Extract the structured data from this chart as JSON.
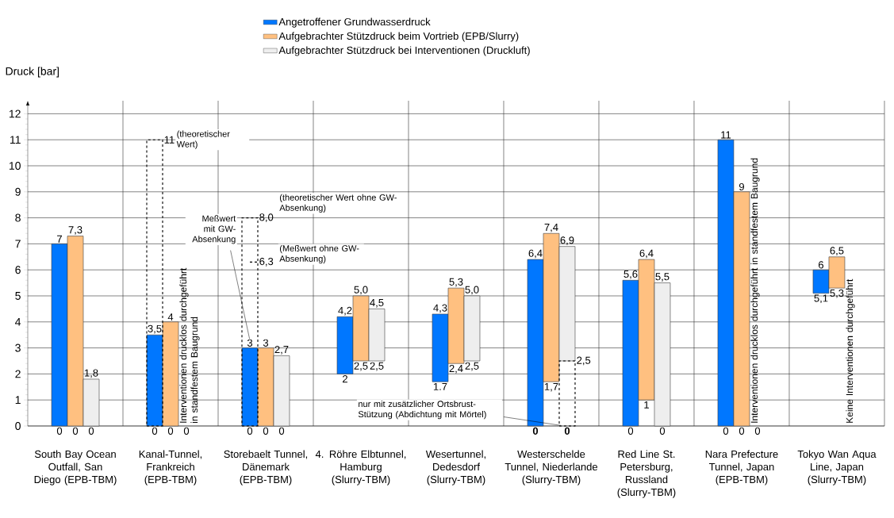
{
  "chart_data": {
    "type": "bar",
    "ylabel": "Druck [bar]",
    "categories": [
      "South Bay Ocean Outfall, San Diego (EPB-TBM)",
      "Kanal-Tunnel, Frankreich (EPB-TBM)",
      "Storebaelt Tunnel, Dänemark (EPB-TBM)",
      "4. Röhre Elbtunnel, Hamburg (Slurry-TBM)",
      "Wesertunnel, Dedesdorf (Slurry-TBM)",
      "Westerschelde Tunnel, Niederlande (Slurry-TBM)",
      "Red Line St. Petersburg, Russland (Slurry-TBM)",
      "Nara Prefecture Tunnel, Japan (EPB-TBM)",
      "Tokyo Wan Aqua Line, Japan (Slurry-TBM)"
    ],
    "series": [
      {
        "name": "Angetroffener Grundwasserdruck",
        "color": "#0077ff",
        "base": [
          0,
          0,
          0,
          2,
          1.7,
          0,
          0,
          0,
          5.1
        ],
        "values": [
          7,
          3.5,
          3,
          2.2,
          2.6,
          6.4,
          5.6,
          11,
          0.9
        ],
        "value_labels": [
          "7",
          "3,5",
          "3",
          "4,2",
          "4,3",
          "6,4",
          "5,6",
          "11",
          "6"
        ]
      },
      {
        "name": "Aufgebrachter Stützdruck beim Vortrieb (EPB/Slurry)",
        "color": "#ffc080",
        "base": [
          0,
          0,
          0,
          2.5,
          2.4,
          1.7,
          1,
          0,
          5.3
        ],
        "values": [
          7.3,
          4,
          3,
          2.5,
          2.9,
          5.7,
          5.4,
          9,
          1.2
        ],
        "value_labels": [
          "7,3",
          "4",
          "3",
          "5,0",
          "5,3",
          "7,4",
          "6,4",
          "9",
          "6,5"
        ]
      },
      {
        "name": "Aufgebrachter Stützdruck bei Interventionen (Druckluft)",
        "color": "#eeeeee",
        "base": [
          0,
          null,
          0,
          2.5,
          2.5,
          2.5,
          0,
          null,
          null
        ],
        "values": [
          1.8,
          null,
          2.7,
          2.0,
          2.5,
          4.4,
          5.5,
          null,
          null
        ],
        "value_labels": [
          "1,8",
          null,
          "2,7",
          "4,5",
          "5,0",
          "6,9",
          "5,5",
          null,
          null
        ]
      },
      {
        "color": "#000000",
        "line_style": "dashed",
        "base": [
          null,
          0,
          0,
          null,
          null,
          0,
          null,
          null,
          null
        ],
        "values": [
          null,
          11,
          8,
          null,
          null,
          2.5,
          null,
          null,
          null
        ],
        "value_labels": [
          null,
          "11",
          "8,0",
          null,
          null,
          "2,5",
          null,
          null,
          null
        ]
      }
    ],
    "ylim": [
      0,
      12.5
    ],
    "yticks": [
      0,
      1,
      2,
      3,
      4,
      5,
      6,
      7,
      8,
      9,
      10,
      11,
      12
    ],
    "grid": true,
    "legend": "top",
    "annotations": [
      "(theoretischer Wert)",
      "(theoretischer Wert ohne GW-Absenkung)",
      "(Meßwert ohne GW-Absenkung)",
      "Meßwert mit GW-Absenkung",
      "nur mit zusätzlicher Ortsbrust-Stützung (Abdichtung mit Mörtel)",
      "Interventionen drucklos durchgeführt in standfestem Baugrund",
      "Interventionen drucklos durchgeführt in standfestem Baugrund",
      "Keine Interventionen durchgeführt",
      "6,3",
      "0",
      "0",
      "0",
      "0",
      "0",
      "0",
      "0",
      "0",
      "0",
      "2",
      "2,5",
      "2,5",
      "1.7",
      "2,4",
      "2,5",
      "**0**",
      "1,7",
      "**0**",
      "0",
      "1",
      "0",
      "0",
      "0",
      "0",
      "5,1",
      "5,3"
    ]
  }
}
